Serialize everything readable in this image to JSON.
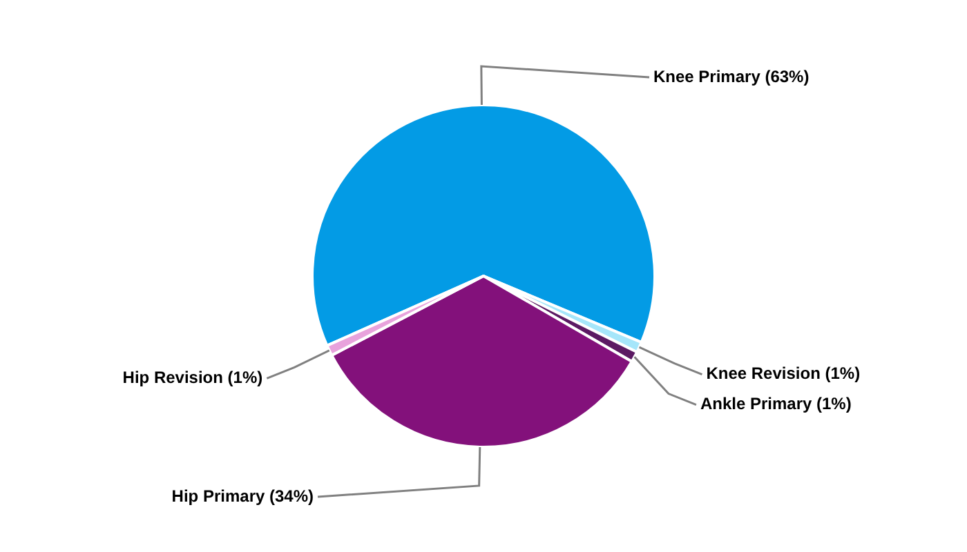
{
  "chart_data": {
    "type": "pie",
    "categories": [
      "Knee Primary",
      "Knee Revision",
      "Ankle Primary",
      "Hip Primary",
      "Hip Revision"
    ],
    "values": [
      63,
      1,
      1,
      34,
      1
    ],
    "value_labels": [
      "(63%)",
      "(1%)",
      "(1%)",
      "(34%)",
      "(1%)"
    ],
    "colors": [
      "#039be5",
      "#a6e6fa",
      "#5c1a63",
      "#83117b",
      "#e8a2dc"
    ],
    "legend": false
  }
}
